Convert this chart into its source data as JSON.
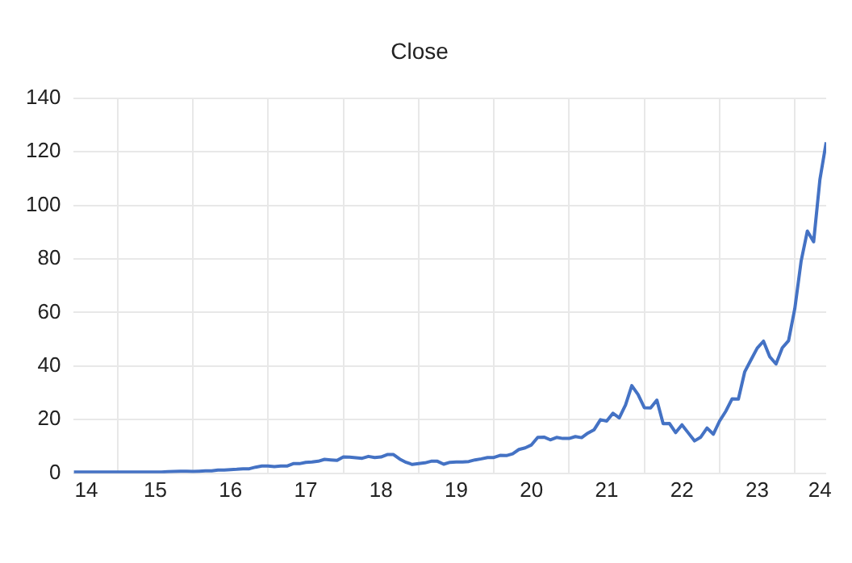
{
  "chart_data": {
    "type": "line",
    "title": "Close",
    "x": [
      "2014-06",
      "2014-07",
      "2014-08",
      "2014-09",
      "2014-10",
      "2014-11",
      "2014-12",
      "2015-01",
      "2015-02",
      "2015-03",
      "2015-04",
      "2015-05",
      "2015-06",
      "2015-07",
      "2015-08",
      "2015-09",
      "2015-10",
      "2015-11",
      "2015-12",
      "2016-01",
      "2016-02",
      "2016-03",
      "2016-04",
      "2016-05",
      "2016-06",
      "2016-07",
      "2016-08",
      "2016-09",
      "2016-10",
      "2016-11",
      "2016-12",
      "2017-01",
      "2017-02",
      "2017-03",
      "2017-04",
      "2017-05",
      "2017-06",
      "2017-07",
      "2017-08",
      "2017-09",
      "2017-10",
      "2017-11",
      "2017-12",
      "2018-01",
      "2018-02",
      "2018-03",
      "2018-04",
      "2018-05",
      "2018-06",
      "2018-07",
      "2018-08",
      "2018-09",
      "2018-10",
      "2018-11",
      "2018-12",
      "2019-01",
      "2019-02",
      "2019-03",
      "2019-04",
      "2019-05",
      "2019-06",
      "2019-07",
      "2019-08",
      "2019-09",
      "2019-10",
      "2019-11",
      "2019-12",
      "2020-01",
      "2020-02",
      "2020-03",
      "2020-04",
      "2020-05",
      "2020-06",
      "2020-07",
      "2020-08",
      "2020-09",
      "2020-10",
      "2020-11",
      "2020-12",
      "2021-01",
      "2021-02",
      "2021-03",
      "2021-04",
      "2021-05",
      "2021-06",
      "2021-07",
      "2021-08",
      "2021-09",
      "2021-10",
      "2021-11",
      "2021-12",
      "2022-01",
      "2022-02",
      "2022-03",
      "2022-04",
      "2022-05",
      "2022-06",
      "2022-07",
      "2022-08",
      "2022-09",
      "2022-10",
      "2022-11",
      "2022-12",
      "2023-01",
      "2023-02",
      "2023-03",
      "2023-04",
      "2023-05",
      "2023-06",
      "2023-07",
      "2023-08",
      "2023-09",
      "2023-10",
      "2023-11",
      "2023-12",
      "2024-01",
      "2024-02",
      "2024-03",
      "2024-04",
      "2024-05",
      "2024-06"
    ],
    "series": [
      {
        "color": "#4472c4",
        "values": [
          0.5,
          0.5,
          0.5,
          0.5,
          0.5,
          0.5,
          0.5,
          0.5,
          0.5,
          0.5,
          0.5,
          0.5,
          0.5,
          0.5,
          0.5,
          0.6,
          0.7,
          0.8,
          0.8,
          0.7,
          0.8,
          0.9,
          0.9,
          1.2,
          1.2,
          1.4,
          1.5,
          1.7,
          1.7,
          2.3,
          2.7,
          2.7,
          2.5,
          2.7,
          2.7,
          3.6,
          3.6,
          4.1,
          4.2,
          4.5,
          5.2,
          5.0,
          4.8,
          6.1,
          6.0,
          5.8,
          5.6,
          6.3,
          5.9,
          6.1,
          7.0,
          7.0,
          5.3,
          4.1,
          3.3,
          3.6,
          3.9,
          4.5,
          4.5,
          3.4,
          4.1,
          4.2,
          4.2,
          4.4,
          5.0,
          5.4,
          5.9,
          5.9,
          6.7,
          6.6,
          7.3,
          8.9,
          9.5,
          10.6,
          13.4,
          13.5,
          12.5,
          13.4,
          13.0,
          13.0,
          13.7,
          13.3,
          15.0,
          16.3,
          20.0,
          19.5,
          22.4,
          20.7,
          25.5,
          32.7,
          29.4,
          24.5,
          24.4,
          27.3,
          18.5,
          18.6,
          15.2,
          18.1,
          15.1,
          12.1,
          13.5,
          16.9,
          14.6,
          19.5,
          23.2,
          27.8,
          27.7,
          37.8,
          42.3,
          46.7,
          49.3,
          43.5,
          40.8,
          46.8,
          49.5,
          61.5,
          79.1,
          90.4,
          86.4,
          109.6,
          123.5
        ]
      }
    ],
    "xlim": [
      "2014-06",
      "2024-06"
    ],
    "xticks": [
      {
        "value": "2014-08",
        "label": "14"
      },
      {
        "value": "2015-01",
        "label": null
      },
      {
        "value": "2015-07",
        "label": "15"
      },
      {
        "value": "2016-01",
        "label": null
      },
      {
        "value": "2016-07",
        "label": "16"
      },
      {
        "value": "2017-01",
        "label": null
      },
      {
        "value": "2017-07",
        "label": "17"
      },
      {
        "value": "2018-01",
        "label": null
      },
      {
        "value": "2018-07",
        "label": "18"
      },
      {
        "value": "2019-01",
        "label": null
      },
      {
        "value": "2019-07",
        "label": "19"
      },
      {
        "value": "2020-01",
        "label": null
      },
      {
        "value": "2020-07",
        "label": "20"
      },
      {
        "value": "2021-01",
        "label": null
      },
      {
        "value": "2021-07",
        "label": "21"
      },
      {
        "value": "2022-01",
        "label": null
      },
      {
        "value": "2022-07",
        "label": "22"
      },
      {
        "value": "2023-01",
        "label": null
      },
      {
        "value": "2023-07",
        "label": "23"
      },
      {
        "value": "2024-01",
        "label": null
      },
      {
        "value": "2024-05",
        "label": "24"
      }
    ],
    "ylim": [
      0,
      140
    ],
    "yticks": [
      0,
      20,
      40,
      60,
      80,
      100,
      120,
      140
    ],
    "grid": true,
    "marker": "none",
    "line_style": "solid"
  }
}
